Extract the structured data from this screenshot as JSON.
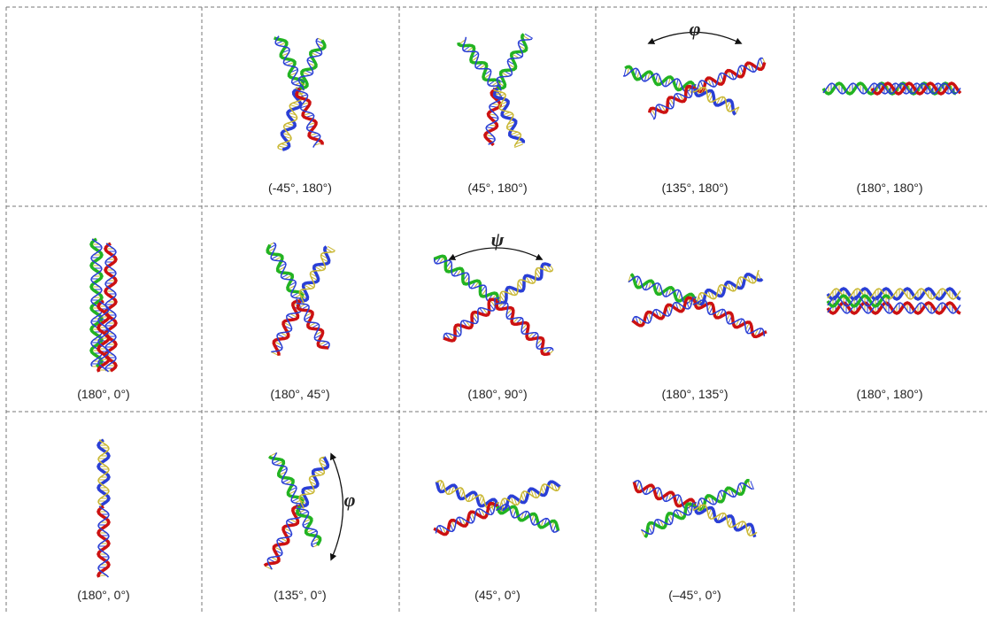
{
  "panels": [
    {
      "label": "(-45°, 180°)"
    },
    {
      "label": "(45°, 180°)"
    },
    {
      "label": "(135°, 180°)"
    },
    {
      "label": "(180°, 180°)"
    },
    {
      "label": "(180°, 0°)"
    },
    {
      "label": "(180°, 45°)"
    },
    {
      "label": "(180°, 90°)"
    },
    {
      "label": "(180°, 135°)"
    },
    {
      "label": "(180°, 180°)"
    },
    {
      "label": "(180°, 0°)"
    },
    {
      "label": "(135°, 0°)"
    },
    {
      "label": "(45°, 0°)"
    },
    {
      "label": "(–45°, 0°)"
    }
  ],
  "annotations": [
    {
      "text": "φ"
    },
    {
      "text": "ψ"
    },
    {
      "text": "φ"
    }
  ]
}
